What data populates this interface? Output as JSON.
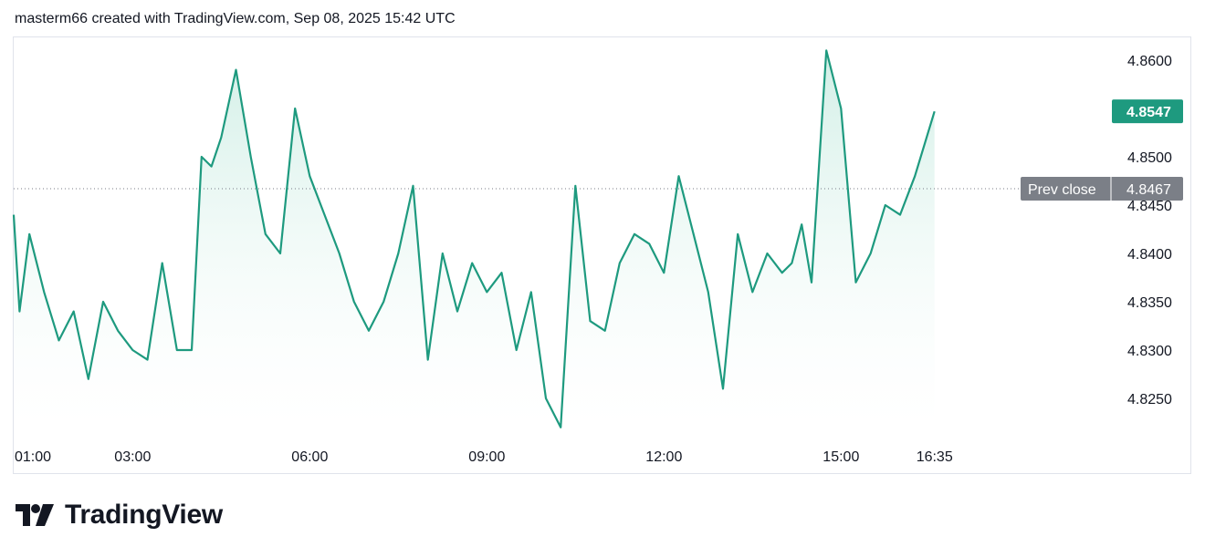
{
  "header": {
    "caption": "masterm66 created with TradingView.com, Sep 08, 2025 15:42 UTC"
  },
  "brand": {
    "name": "TradingView",
    "logo_icon": "tradingview-logo-icon"
  },
  "colors": {
    "line": "#1e9a7f",
    "fill_top": "#cfeee5",
    "badge": "#1e9a7f",
    "prev_close_badge": "#7b7f87",
    "prev_close_line": "#787b86",
    "tick_text": "#131722"
  },
  "chart_data": {
    "type": "area",
    "x_tick_labels": [
      "01:00",
      "03:00",
      "06:00",
      "09:00",
      "12:00",
      "15:00",
      "16:35"
    ],
    "y_tick_labels": [
      "4.8600",
      "4.8500",
      "4.8450",
      "4.8400",
      "4.8350",
      "4.8300",
      "4.8250"
    ],
    "y_ticks": [
      4.86,
      4.85,
      4.845,
      4.84,
      4.835,
      4.83,
      4.825
    ],
    "ylim": [
      4.8225,
      4.8625
    ],
    "last_price": {
      "label": "4.8547",
      "value": 4.8547
    },
    "prev_close": {
      "text": "Prev close",
      "label": "4.8467",
      "value": 4.8467
    },
    "grid": false,
    "x_time": [
      "00:50",
      "01:05",
      "01:15",
      "01:30",
      "01:45",
      "02:00",
      "02:15",
      "02:30",
      "02:45",
      "03:00",
      "03:15",
      "03:30",
      "03:45",
      "04:00",
      "04:10",
      "04:20",
      "04:30",
      "04:45",
      "05:00",
      "05:15",
      "05:30",
      "05:45",
      "06:00",
      "06:15",
      "06:30",
      "06:45",
      "07:00",
      "07:15",
      "07:30",
      "07:45",
      "08:00",
      "08:15",
      "08:30",
      "08:45",
      "09:00",
      "09:15",
      "09:30",
      "09:45",
      "10:00",
      "10:15",
      "10:30",
      "10:45",
      "11:00",
      "11:15",
      "11:30",
      "11:45",
      "12:00",
      "12:15",
      "12:30",
      "12:45",
      "13:00",
      "13:15",
      "13:30",
      "13:45",
      "14:00",
      "14:10",
      "14:20",
      "14:30",
      "14:45",
      "15:00",
      "15:15",
      "15:30",
      "15:45",
      "16:00",
      "16:15",
      "16:35"
    ],
    "values": [
      4.844,
      4.834,
      4.842,
      4.836,
      4.831,
      4.834,
      4.827,
      4.835,
      4.832,
      4.83,
      4.829,
      4.839,
      4.83,
      4.83,
      4.85,
      4.849,
      4.852,
      4.859,
      4.85,
      4.842,
      4.84,
      4.855,
      4.848,
      4.844,
      4.84,
      4.835,
      4.832,
      4.835,
      4.84,
      4.847,
      4.829,
      4.84,
      4.834,
      4.839,
      4.836,
      4.838,
      4.83,
      4.836,
      4.825,
      4.822,
      4.847,
      4.833,
      4.832,
      4.839,
      4.842,
      4.841,
      4.838,
      4.848,
      4.842,
      4.836,
      4.826,
      4.842,
      4.836,
      4.84,
      4.838,
      4.839,
      4.843,
      4.837,
      4.861,
      4.855,
      4.837,
      4.84,
      4.845,
      4.844,
      4.848,
      4.8547
    ]
  }
}
